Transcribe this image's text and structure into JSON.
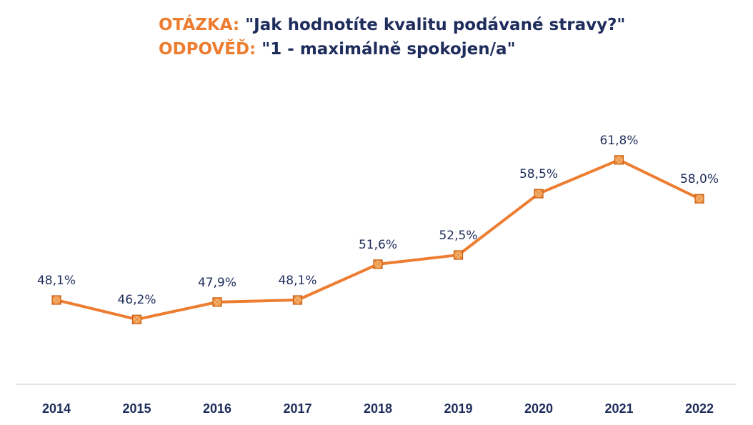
{
  "title": {
    "question_label": "OTÁZKA:",
    "question_text": "\"Jak hodnotíte kvalitu podávané stravy?\"",
    "answer_label": "ODPOVĚĎ:",
    "answer_text": "\"1 - maximálně spokojen/a\""
  },
  "colors": {
    "label_orange": "#ED7D31",
    "text_navy": "#1F2D5C",
    "line": "#ED7D31",
    "marker_fill": "#F08C2E",
    "marker_dark": "#C55A11",
    "axis": "#D9D9D9"
  },
  "chart_data": {
    "type": "line",
    "categories": [
      "2014",
      "2015",
      "2016",
      "2017",
      "2018",
      "2019",
      "2020",
      "2021",
      "2022"
    ],
    "series": [
      {
        "values": [
          48.1,
          46.2,
          47.9,
          48.1,
          51.6,
          52.5,
          58.5,
          61.8,
          58.0
        ],
        "labels": [
          "48,1%",
          "46,2%",
          "47,9%",
          "48,1%",
          "51,6%",
          "52,5%",
          "58,5%",
          "61,8%",
          "58,0%"
        ]
      }
    ],
    "xlabel": "",
    "ylabel": "",
    "grid": false,
    "legend": "none"
  }
}
